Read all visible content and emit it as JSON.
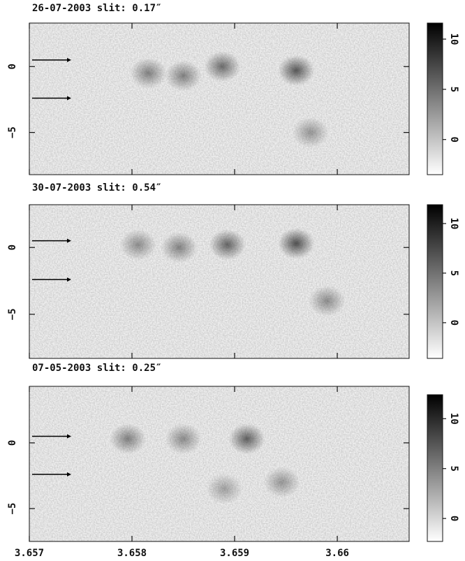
{
  "chart_data": [
    {
      "type": "image",
      "title": "26-07-2003  slit: 0.17″",
      "xlim": [
        3.657,
        3.6607
      ],
      "xticks": [
        3.657,
        3.658,
        3.659,
        3.66
      ],
      "ylim": [
        -8.2,
        3.3
      ],
      "yticks": [
        0,
        {
          "value": -5,
          "label": "−5"
        }
      ],
      "clim": [
        -3.5,
        11.6
      ],
      "cticks": [
        0,
        5,
        10
      ],
      "features": [
        {
          "x": 3.65816,
          "y": -0.5,
          "value": 6
        },
        {
          "x": 3.6585,
          "y": -0.7,
          "value": 6
        },
        {
          "x": 3.65888,
          "y": 0,
          "value": 8
        },
        {
          "x": 3.6596,
          "y": -0.3,
          "value": 10
        },
        {
          "x": 3.65974,
          "y": -5,
          "value": 4
        }
      ]
    },
    {
      "type": "image",
      "title": "30-07-2003  slit: 0.54″",
      "xlim": [
        3.657,
        3.6607
      ],
      "xticks": [
        3.657,
        3.658,
        3.659,
        3.66
      ],
      "ylim": [
        -8.3,
        3.2
      ],
      "yticks": [
        0,
        {
          "value": -5,
          "label": "−5"
        }
      ],
      "clim": [
        -3.6,
        11.9
      ],
      "cticks": [
        0,
        5,
        10
      ],
      "features": [
        {
          "x": 3.65806,
          "y": 0.2,
          "value": 5
        },
        {
          "x": 3.65846,
          "y": 0,
          "value": 6
        },
        {
          "x": 3.65893,
          "y": 0.2,
          "value": 9
        },
        {
          "x": 3.6596,
          "y": 0.3,
          "value": 11
        },
        {
          "x": 3.6599,
          "y": -4,
          "value": 5
        }
      ]
    },
    {
      "type": "image",
      "title": "07-05-2003  slit: 0.25″",
      "xlim": [
        3.657,
        3.6607
      ],
      "xticks": [
        3.657,
        3.658,
        3.659,
        3.66
      ],
      "ylim": [
        -7.5,
        4.3
      ],
      "yticks": [
        0,
        {
          "value": -5,
          "label": "−5"
        }
      ],
      "clim": [
        -2.3,
        12.4
      ],
      "cticks": [
        0,
        5,
        10
      ],
      "features": [
        {
          "x": 3.65796,
          "y": 0.3,
          "value": 7
        },
        {
          "x": 3.6585,
          "y": 0.3,
          "value": 6
        },
        {
          "x": 3.65912,
          "y": 0.3,
          "value": 10
        },
        {
          "x": 3.65946,
          "y": -3,
          "value": 5
        },
        {
          "x": 3.6589,
          "y": -3.5,
          "value": 4
        }
      ]
    }
  ]
}
